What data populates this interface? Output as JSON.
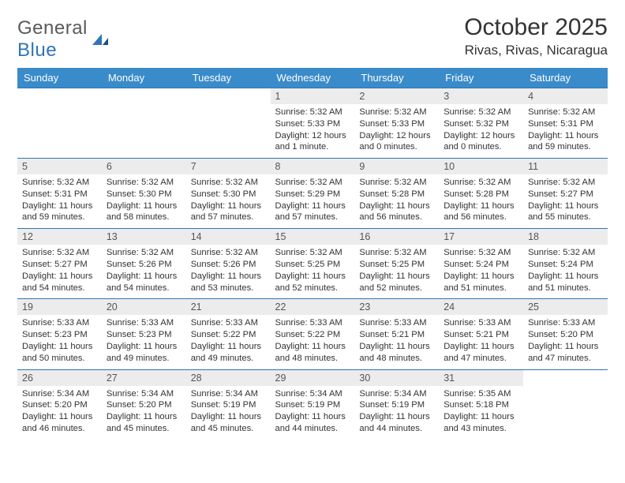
{
  "logo": {
    "word1": "General",
    "word2": "Blue"
  },
  "title": "October 2025",
  "location": "Rivas, Rivas, Nicaragua",
  "colors": {
    "header_bg": "#3a8bc9",
    "header_text": "#ffffff",
    "rule": "#2e75b6",
    "daynum_bg": "#ececec",
    "text": "#333333",
    "logo_gray": "#5a5a5a",
    "logo_blue": "#2e75b6",
    "page_bg": "#ffffff"
  },
  "weekdays": [
    "Sunday",
    "Monday",
    "Tuesday",
    "Wednesday",
    "Thursday",
    "Friday",
    "Saturday"
  ],
  "weeks": [
    [
      {
        "n": "",
        "lines": []
      },
      {
        "n": "",
        "lines": []
      },
      {
        "n": "",
        "lines": []
      },
      {
        "n": "1",
        "lines": [
          "Sunrise: 5:32 AM",
          "Sunset: 5:33 PM",
          "Daylight: 12 hours and 1 minute."
        ]
      },
      {
        "n": "2",
        "lines": [
          "Sunrise: 5:32 AM",
          "Sunset: 5:33 PM",
          "Daylight: 12 hours and 0 minutes."
        ]
      },
      {
        "n": "3",
        "lines": [
          "Sunrise: 5:32 AM",
          "Sunset: 5:32 PM",
          "Daylight: 12 hours and 0 minutes."
        ]
      },
      {
        "n": "4",
        "lines": [
          "Sunrise: 5:32 AM",
          "Sunset: 5:31 PM",
          "Daylight: 11 hours and 59 minutes."
        ]
      }
    ],
    [
      {
        "n": "5",
        "lines": [
          "Sunrise: 5:32 AM",
          "Sunset: 5:31 PM",
          "Daylight: 11 hours and 59 minutes."
        ]
      },
      {
        "n": "6",
        "lines": [
          "Sunrise: 5:32 AM",
          "Sunset: 5:30 PM",
          "Daylight: 11 hours and 58 minutes."
        ]
      },
      {
        "n": "7",
        "lines": [
          "Sunrise: 5:32 AM",
          "Sunset: 5:30 PM",
          "Daylight: 11 hours and 57 minutes."
        ]
      },
      {
        "n": "8",
        "lines": [
          "Sunrise: 5:32 AM",
          "Sunset: 5:29 PM",
          "Daylight: 11 hours and 57 minutes."
        ]
      },
      {
        "n": "9",
        "lines": [
          "Sunrise: 5:32 AM",
          "Sunset: 5:28 PM",
          "Daylight: 11 hours and 56 minutes."
        ]
      },
      {
        "n": "10",
        "lines": [
          "Sunrise: 5:32 AM",
          "Sunset: 5:28 PM",
          "Daylight: 11 hours and 56 minutes."
        ]
      },
      {
        "n": "11",
        "lines": [
          "Sunrise: 5:32 AM",
          "Sunset: 5:27 PM",
          "Daylight: 11 hours and 55 minutes."
        ]
      }
    ],
    [
      {
        "n": "12",
        "lines": [
          "Sunrise: 5:32 AM",
          "Sunset: 5:27 PM",
          "Daylight: 11 hours and 54 minutes."
        ]
      },
      {
        "n": "13",
        "lines": [
          "Sunrise: 5:32 AM",
          "Sunset: 5:26 PM",
          "Daylight: 11 hours and 54 minutes."
        ]
      },
      {
        "n": "14",
        "lines": [
          "Sunrise: 5:32 AM",
          "Sunset: 5:26 PM",
          "Daylight: 11 hours and 53 minutes."
        ]
      },
      {
        "n": "15",
        "lines": [
          "Sunrise: 5:32 AM",
          "Sunset: 5:25 PM",
          "Daylight: 11 hours and 52 minutes."
        ]
      },
      {
        "n": "16",
        "lines": [
          "Sunrise: 5:32 AM",
          "Sunset: 5:25 PM",
          "Daylight: 11 hours and 52 minutes."
        ]
      },
      {
        "n": "17",
        "lines": [
          "Sunrise: 5:32 AM",
          "Sunset: 5:24 PM",
          "Daylight: 11 hours and 51 minutes."
        ]
      },
      {
        "n": "18",
        "lines": [
          "Sunrise: 5:32 AM",
          "Sunset: 5:24 PM",
          "Daylight: 11 hours and 51 minutes."
        ]
      }
    ],
    [
      {
        "n": "19",
        "lines": [
          "Sunrise: 5:33 AM",
          "Sunset: 5:23 PM",
          "Daylight: 11 hours and 50 minutes."
        ]
      },
      {
        "n": "20",
        "lines": [
          "Sunrise: 5:33 AM",
          "Sunset: 5:23 PM",
          "Daylight: 11 hours and 49 minutes."
        ]
      },
      {
        "n": "21",
        "lines": [
          "Sunrise: 5:33 AM",
          "Sunset: 5:22 PM",
          "Daylight: 11 hours and 49 minutes."
        ]
      },
      {
        "n": "22",
        "lines": [
          "Sunrise: 5:33 AM",
          "Sunset: 5:22 PM",
          "Daylight: 11 hours and 48 minutes."
        ]
      },
      {
        "n": "23",
        "lines": [
          "Sunrise: 5:33 AM",
          "Sunset: 5:21 PM",
          "Daylight: 11 hours and 48 minutes."
        ]
      },
      {
        "n": "24",
        "lines": [
          "Sunrise: 5:33 AM",
          "Sunset: 5:21 PM",
          "Daylight: 11 hours and 47 minutes."
        ]
      },
      {
        "n": "25",
        "lines": [
          "Sunrise: 5:33 AM",
          "Sunset: 5:20 PM",
          "Daylight: 11 hours and 47 minutes."
        ]
      }
    ],
    [
      {
        "n": "26",
        "lines": [
          "Sunrise: 5:34 AM",
          "Sunset: 5:20 PM",
          "Daylight: 11 hours and 46 minutes."
        ]
      },
      {
        "n": "27",
        "lines": [
          "Sunrise: 5:34 AM",
          "Sunset: 5:20 PM",
          "Daylight: 11 hours and 45 minutes."
        ]
      },
      {
        "n": "28",
        "lines": [
          "Sunrise: 5:34 AM",
          "Sunset: 5:19 PM",
          "Daylight: 11 hours and 45 minutes."
        ]
      },
      {
        "n": "29",
        "lines": [
          "Sunrise: 5:34 AM",
          "Sunset: 5:19 PM",
          "Daylight: 11 hours and 44 minutes."
        ]
      },
      {
        "n": "30",
        "lines": [
          "Sunrise: 5:34 AM",
          "Sunset: 5:19 PM",
          "Daylight: 11 hours and 44 minutes."
        ]
      },
      {
        "n": "31",
        "lines": [
          "Sunrise: 5:35 AM",
          "Sunset: 5:18 PM",
          "Daylight: 11 hours and 43 minutes."
        ]
      },
      {
        "n": "",
        "lines": []
      }
    ]
  ]
}
